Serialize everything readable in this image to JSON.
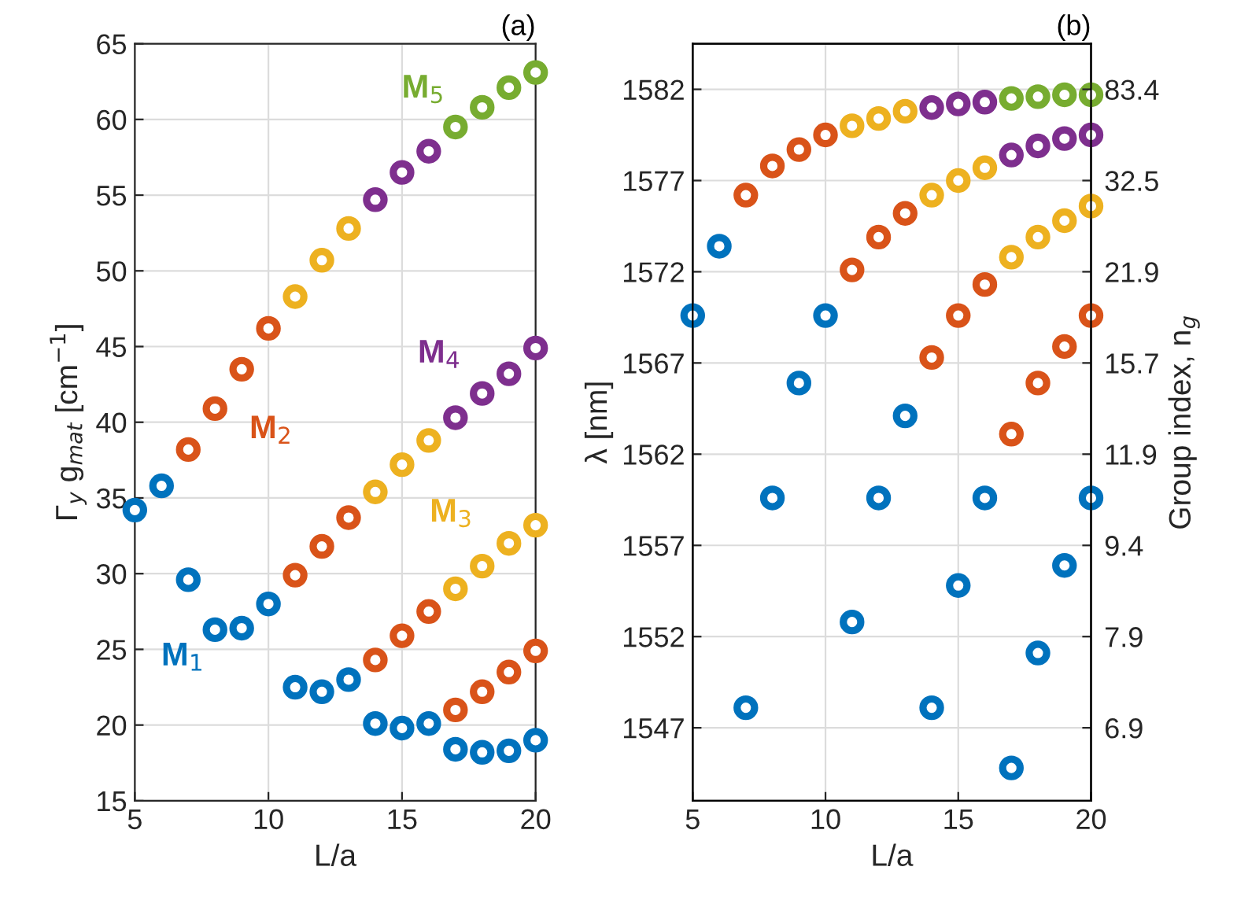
{
  "chart_data": [
    {
      "type": "scatter",
      "title": "(a)",
      "xlabel": "L/a",
      "ylabel": "Γ$_{y}$ g$_{mat}$ [cm$^{−1}$]",
      "xlim": [
        5,
        20
      ],
      "xticks": [
        5,
        10,
        15,
        20
      ],
      "ylim": [
        15,
        65
      ],
      "yticks": [
        15,
        20,
        25,
        30,
        35,
        40,
        45,
        50,
        55,
        60,
        65
      ],
      "grid": true,
      "marker": "circle",
      "legend": false,
      "series": [
        {
          "name": "M$_{1}$",
          "color": "#0072bd",
          "x": [
            5,
            6,
            7,
            8,
            9,
            10,
            11,
            12,
            13,
            14,
            15,
            16,
            17,
            18,
            19,
            20
          ],
          "values": [
            34.2,
            35.8,
            29.6,
            26.3,
            26.4,
            28.0,
            22.5,
            22.2,
            23.0,
            20.1,
            19.8,
            20.1,
            18.4,
            18.2,
            18.3,
            19.0
          ]
        },
        {
          "name": "M$_{2}$",
          "color": "#d95319",
          "x": [
            7,
            8,
            9,
            10,
            11,
            12,
            13,
            14,
            15,
            16,
            17,
            18,
            19,
            20
          ],
          "values": [
            38.2,
            40.9,
            43.5,
            46.2,
            29.9,
            31.8,
            33.7,
            24.3,
            25.9,
            27.5,
            21.0,
            22.2,
            23.5,
            24.9
          ]
        },
        {
          "name": "M$_{3}$",
          "color": "#edb120",
          "x": [
            11,
            12,
            13,
            14,
            15,
            16,
            17,
            18,
            19,
            20
          ],
          "values": [
            48.3,
            50.7,
            52.8,
            35.4,
            37.2,
            38.8,
            29.0,
            30.5,
            32.0,
            33.2
          ]
        },
        {
          "name": "M$_{4}$",
          "color": "#7e2f8e",
          "x": [
            14,
            15,
            16,
            17,
            18,
            19,
            20
          ],
          "values": [
            54.7,
            56.5,
            57.9,
            40.3,
            41.9,
            43.2,
            44.9
          ]
        },
        {
          "name": "M$_{5}$",
          "color": "#77ac30",
          "x": [
            17,
            18,
            19,
            20
          ],
          "values": [
            59.5,
            60.8,
            62.1,
            63.1
          ]
        }
      ]
    },
    {
      "type": "scatter",
      "title": "(b)",
      "xlabel": "L/a",
      "ylabel": "λ [nm]",
      "y2label": "Group index, n$_{g}$",
      "xlim": [
        5,
        20
      ],
      "xticks": [
        5,
        10,
        15,
        20
      ],
      "ylim": [
        1543,
        1584.5
      ],
      "yticks": [
        1547,
        1552,
        1557,
        1562,
        1567,
        1572,
        1577,
        1582
      ],
      "y2_categories": [
        "83.4",
        "32.5",
        "21.9",
        "15.7",
        "11.9",
        "9.4",
        "7.9",
        "6.9"
      ],
      "grid": true,
      "marker": "circle",
      "legend": false,
      "series": [
        {
          "color": "#0072bd",
          "x": [
            5,
            6,
            7,
            8,
            9,
            10,
            11,
            12,
            13,
            14,
            15,
            16,
            17,
            18,
            19,
            20
          ],
          "values": [
            1569.6,
            1573.4,
            1548.1,
            1559.6,
            1565.9,
            1569.6,
            1552.8,
            1559.6,
            1564.1,
            1548.1,
            1554.8,
            1559.6,
            1544.8,
            1551.1,
            1555.9,
            1559.6
          ]
        },
        {
          "color": "#d95319",
          "x": [
            7,
            8,
            9,
            10,
            11,
            12,
            13,
            14,
            15,
            16,
            17,
            18,
            19,
            20
          ],
          "values": [
            1576.2,
            1577.8,
            1578.7,
            1579.5,
            1572.1,
            1573.9,
            1575.2,
            1567.3,
            1569.6,
            1571.3,
            1563.1,
            1565.9,
            1567.9,
            1569.6
          ]
        },
        {
          "color": "#edb120",
          "x": [
            11,
            12,
            13,
            14,
            15,
            16,
            17,
            18,
            19,
            20
          ],
          "values": [
            1580.0,
            1580.4,
            1580.8,
            1576.2,
            1577.0,
            1577.7,
            1572.8,
            1573.9,
            1574.8,
            1575.6
          ]
        },
        {
          "color": "#7e2f8e",
          "x": [
            14,
            15,
            16,
            17,
            18,
            19,
            20
          ],
          "values": [
            1581.0,
            1581.2,
            1581.3,
            1578.4,
            1578.9,
            1579.3,
            1579.5
          ]
        },
        {
          "color": "#77ac30",
          "x": [
            17,
            18,
            19,
            20
          ],
          "values": [
            1581.5,
            1581.6,
            1581.7,
            1581.7
          ]
        }
      ]
    }
  ]
}
